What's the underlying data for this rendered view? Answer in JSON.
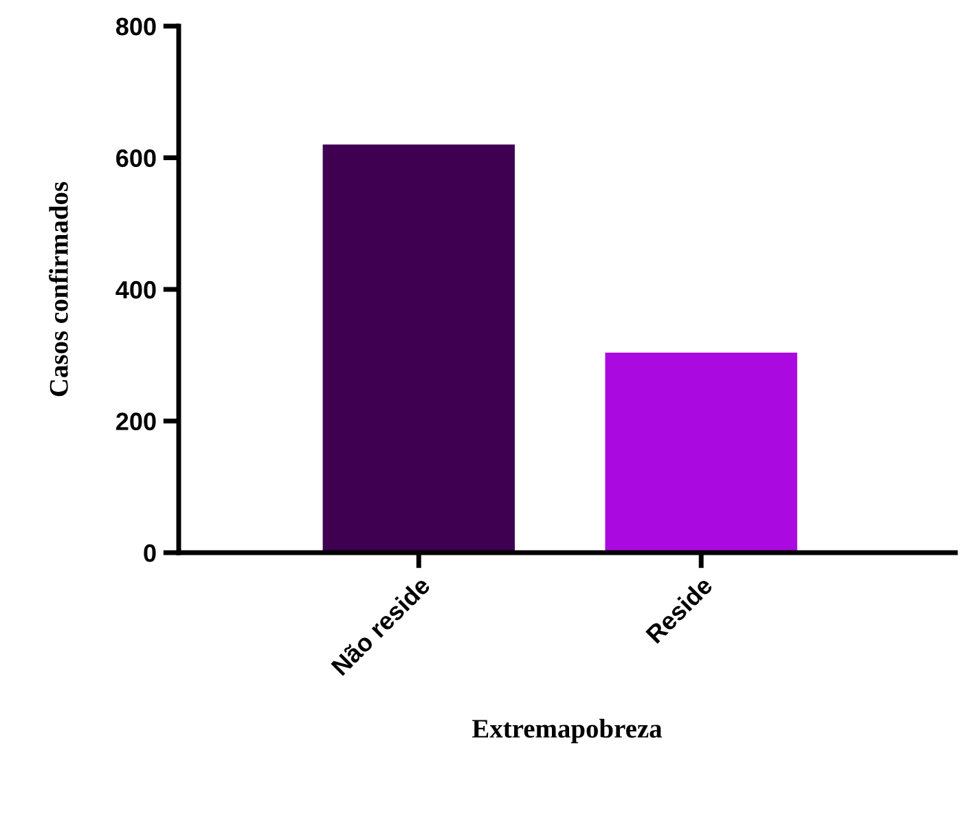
{
  "chart_data": {
    "type": "bar",
    "xlabel": "Extremapobreza",
    "ylabel": "Casos confirmados",
    "categories": [
      "Não reside",
      "Reside"
    ],
    "values": [
      620,
      304
    ],
    "colors": [
      "#3f0052",
      "#aa0ae0"
    ],
    "ylim": [
      0,
      800
    ],
    "yticks": [
      0,
      200,
      400,
      600,
      800
    ],
    "grid": false,
    "legend": false
  }
}
